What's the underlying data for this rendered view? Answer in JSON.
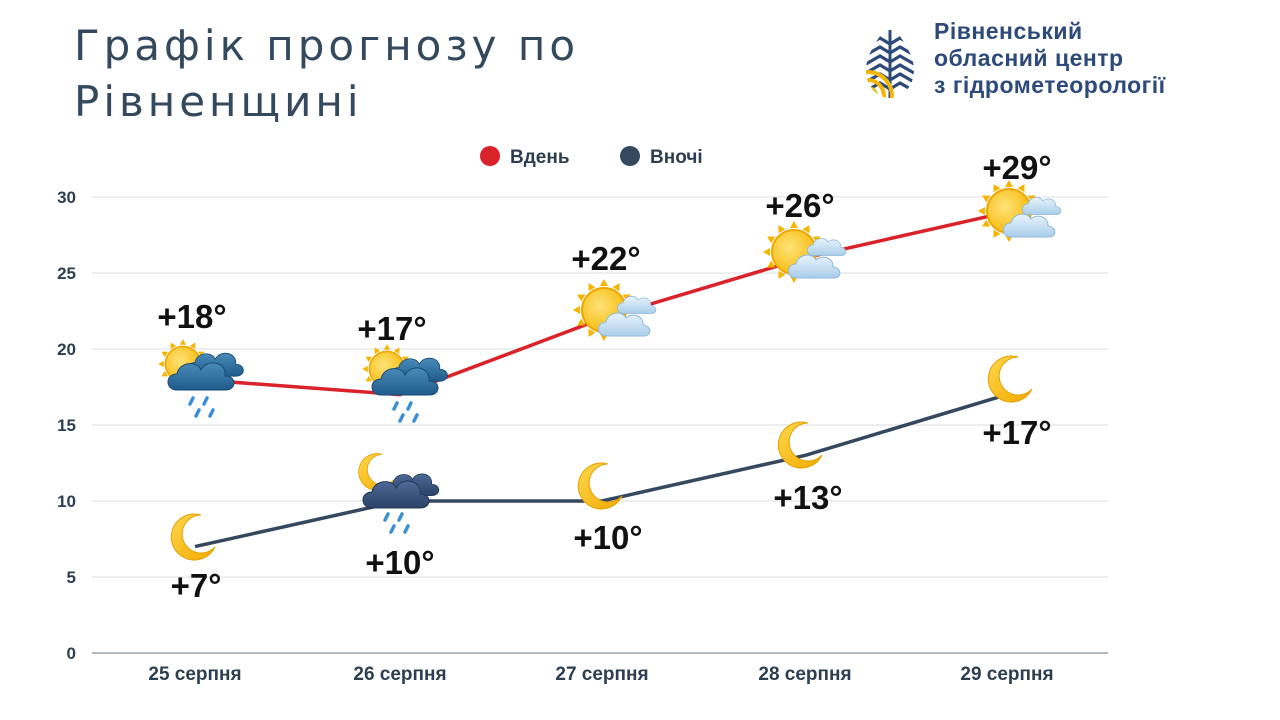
{
  "title": {
    "line1": "Графік прогнозу по",
    "line2": "Рівненщині"
  },
  "organization": {
    "line1": "Рівненський",
    "line2": "обласний центр",
    "line3": "з гідрометеорології",
    "logo_icon": "water-drop-logo-icon",
    "colors": {
      "blue": "#2d4a7a",
      "yellow": "#f2b705"
    }
  },
  "chart_data": {
    "type": "line",
    "categories": [
      "25 серпня",
      "26 серпня",
      "27 серпня",
      "28 серпня",
      "29 серпня"
    ],
    "ylim": [
      0,
      30
    ],
    "yticks": [
      0,
      5,
      10,
      15,
      20,
      25,
      30
    ],
    "grid": true,
    "legend_position": "top-center",
    "series": [
      {
        "name": "Вдень",
        "color": "#d9222a",
        "values": [
          18,
          17,
          22,
          26,
          29
        ],
        "labels": [
          "+18°",
          "+17°",
          "+22°",
          "+26°",
          "+29°"
        ],
        "icons": [
          "sun-cloud-rain-icon",
          "sun-cloud-rain-icon",
          "sun-cloud-icon",
          "sun-cloud-icon",
          "sun-cloud-icon"
        ]
      },
      {
        "name": "Вночі",
        "color": "#34495e",
        "values": [
          7,
          10,
          10,
          13,
          17
        ],
        "labels": [
          "+7°",
          "+10°",
          "+10°",
          "+13°",
          "+17°"
        ],
        "icons": [
          "moon-icon",
          "moon-cloud-rain-icon",
          "moon-icon",
          "moon-icon",
          "moon-icon"
        ]
      }
    ]
  }
}
